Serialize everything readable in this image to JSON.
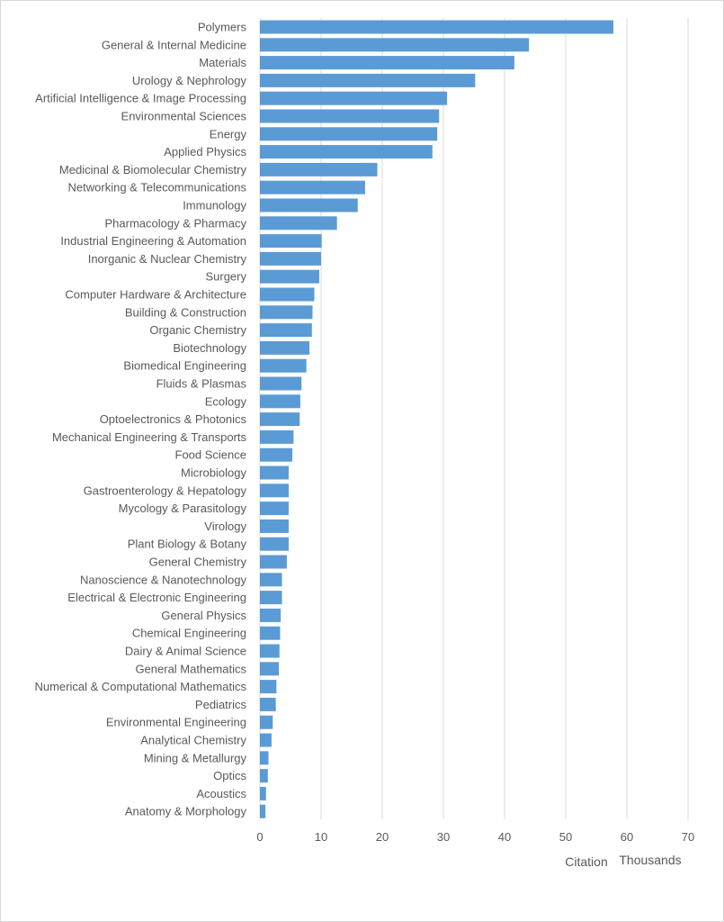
{
  "chart_data": {
    "type": "bar",
    "orientation": "horizontal",
    "categories": [
      "Polymers",
      "General & Internal Medicine",
      "Materials",
      "Urology & Nephrology",
      "Artificial Intelligence & Image Processing",
      "Environmental Sciences",
      "Energy",
      "Applied Physics",
      "Medicinal & Biomolecular Chemistry",
      "Networking & Telecommunications",
      "Immunology",
      "Pharmacology & Pharmacy",
      "Industrial Engineering & Automation",
      "Inorganic & Nuclear Chemistry",
      "Surgery",
      "Computer Hardware & Architecture",
      "Building & Construction",
      "Organic Chemistry",
      "Biotechnology",
      "Biomedical Engineering",
      "Fluids & Plasmas",
      "Ecology",
      "Optoelectronics & Photonics",
      "Mechanical Engineering & Transports",
      "Food Science",
      "Microbiology",
      "Gastroenterology & Hepatology",
      "Mycology & Parasitology",
      "Virology",
      "Plant Biology & Botany",
      "General Chemistry",
      "Nanoscience & Nanotechnology",
      "Electrical & Electronic Engineering",
      "General Physics",
      "Chemical Engineering",
      "Dairy & Animal Science",
      "General Mathematics",
      "Numerical & Computational Mathematics",
      "Pediatrics",
      "Environmental Engineering",
      "Analytical Chemistry",
      "Mining & Metallurgy",
      "Optics",
      "Acoustics",
      "Anatomy & Morphology"
    ],
    "values": [
      57.8,
      44.0,
      41.6,
      35.2,
      30.6,
      29.3,
      29.0,
      28.2,
      19.2,
      17.2,
      16.0,
      12.6,
      10.1,
      10.0,
      9.7,
      8.9,
      8.6,
      8.5,
      8.1,
      7.6,
      6.8,
      6.6,
      6.5,
      5.5,
      5.3,
      4.7,
      4.7,
      4.7,
      4.7,
      4.7,
      4.4,
      3.6,
      3.6,
      3.4,
      3.3,
      3.2,
      3.1,
      2.7,
      2.6,
      2.1,
      1.9,
      1.4,
      1.3,
      1.0,
      0.9
    ],
    "xlim": [
      0,
      70
    ],
    "xticks": [
      0,
      10,
      20,
      30,
      40,
      50,
      60,
      70
    ],
    "xlabel": "Citation",
    "xunit": "Thousands",
    "grid": true,
    "legend": "none",
    "colors": {
      "bar": "#5b9bd5",
      "grid": "#d9d9d9",
      "text": "#595959"
    }
  }
}
